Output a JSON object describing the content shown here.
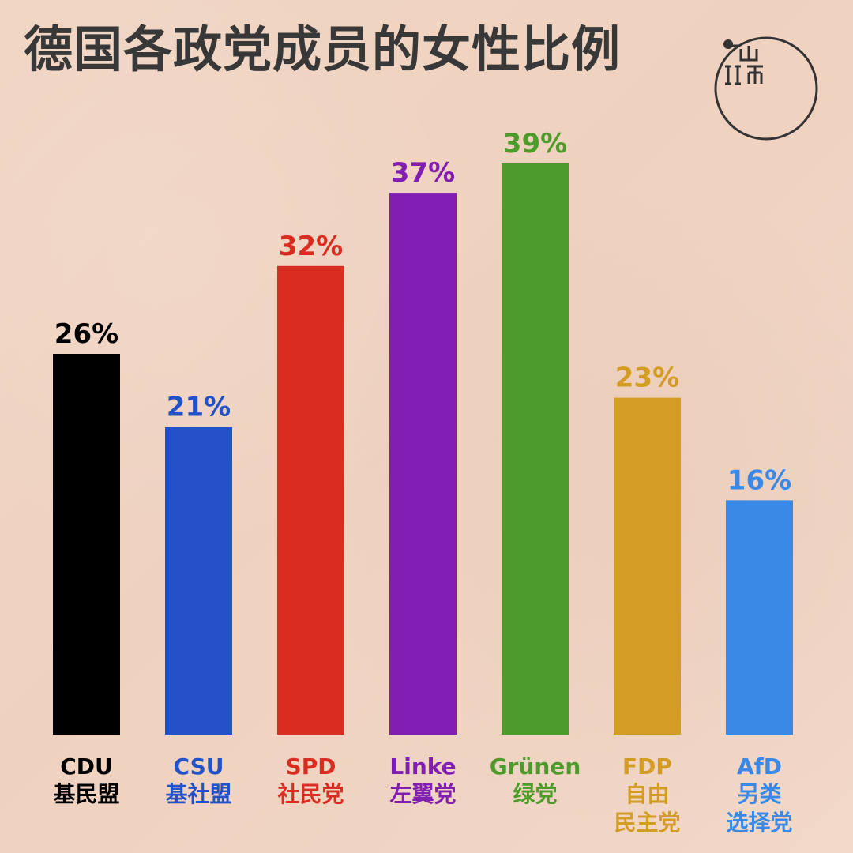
{
  "chart_data": {
    "type": "bar",
    "title": "德国各政党成员的女性比例",
    "categories": [
      "CDU",
      "CSU",
      "SPD",
      "Linke",
      "Grünen",
      "FDP",
      "AfD"
    ],
    "category_sublabels": [
      [
        "基民盟"
      ],
      [
        "基社盟"
      ],
      [
        "社民党"
      ],
      [
        "左翼党"
      ],
      [
        "绿党"
      ],
      [
        "自由",
        "民主党"
      ],
      [
        "另类",
        "选择党"
      ]
    ],
    "values": [
      26,
      21,
      32,
      37,
      39,
      23,
      16
    ],
    "value_labels": [
      "26%",
      "21%",
      "32%",
      "37%",
      "39%",
      "23%",
      "16%"
    ],
    "colors": [
      "#000000",
      "#2352c8",
      "#d92d21",
      "#821fb2",
      "#4d9c2b",
      "#d39c24",
      "#3a89e7"
    ],
    "ylim": [
      0,
      39
    ],
    "grid": false,
    "legend": "none"
  }
}
